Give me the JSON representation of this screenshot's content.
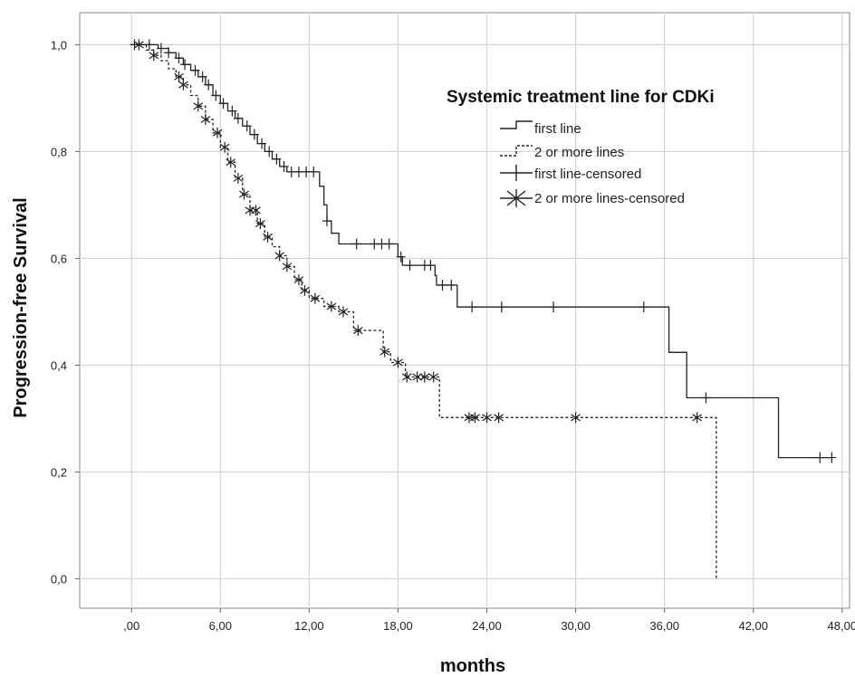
{
  "chart_data": {
    "type": "line",
    "subtype": "kaplan-meier step",
    "xlabel": "months",
    "ylabel": "Progression-free Survival",
    "xlim": [
      -3.5,
      48.5
    ],
    "ylim": [
      -0.055,
      1.06
    ],
    "x_ticks": [
      0,
      6,
      12,
      18,
      24,
      30,
      36,
      42,
      48
    ],
    "x_tick_labels": [
      ",00",
      "6,00",
      "12,00",
      "18,00",
      "24,00",
      "30,00",
      "36,00",
      "42,00",
      "48,00"
    ],
    "y_ticks": [
      0,
      0.2,
      0.4,
      0.6,
      0.8,
      1.0
    ],
    "y_tick_labels": [
      "0,0",
      "0,2",
      "0,4",
      "0,6",
      "0,8",
      "1,0"
    ],
    "grid": true,
    "legend": {
      "title": "Systemic treatment line for CDKi",
      "placement": "top-right",
      "entries": [
        "first line",
        "2 or more lines",
        "first line-censored",
        "2 or more lines-censored"
      ]
    },
    "series": [
      {
        "name": "first line",
        "style": "solid",
        "color": "#222222",
        "steps": [
          [
            0,
            1.0
          ],
          [
            1.8,
            0.993
          ],
          [
            2.5,
            0.985
          ],
          [
            3.0,
            0.975
          ],
          [
            3.5,
            0.963
          ],
          [
            4.0,
            0.952
          ],
          [
            4.5,
            0.94
          ],
          [
            5.0,
            0.925
          ],
          [
            5.5,
            0.905
          ],
          [
            6.0,
            0.89
          ],
          [
            6.5,
            0.876
          ],
          [
            7.0,
            0.862
          ],
          [
            7.5,
            0.848
          ],
          [
            8.0,
            0.832
          ],
          [
            8.5,
            0.815
          ],
          [
            9.0,
            0.8
          ],
          [
            9.5,
            0.786
          ],
          [
            10.0,
            0.772
          ],
          [
            10.5,
            0.762
          ],
          [
            12.7,
            0.735
          ],
          [
            13.0,
            0.7
          ],
          [
            13.2,
            0.67
          ],
          [
            13.5,
            0.647
          ],
          [
            14.0,
            0.627
          ],
          [
            18.0,
            0.603
          ],
          [
            18.3,
            0.587
          ],
          [
            20.5,
            0.568
          ],
          [
            20.6,
            0.55
          ],
          [
            22.0,
            0.509
          ],
          [
            36.3,
            0.424
          ],
          [
            37.5,
            0.339
          ],
          [
            43.7,
            0.227
          ],
          [
            47.2,
            0.227
          ]
        ],
        "censored": [
          [
            0.2,
            0.998
          ],
          [
            1.2,
            0.995
          ],
          [
            2.0,
            0.992
          ],
          [
            2.5,
            0.99
          ],
          [
            3.2,
            0.97
          ],
          [
            3.6,
            0.96
          ],
          [
            4.3,
            0.945
          ],
          [
            4.8,
            0.93
          ],
          [
            5.2,
            0.915
          ],
          [
            5.7,
            0.9
          ],
          [
            6.2,
            0.885
          ],
          [
            6.8,
            0.87
          ],
          [
            7.2,
            0.855
          ],
          [
            7.8,
            0.84
          ],
          [
            8.3,
            0.823
          ],
          [
            8.8,
            0.806
          ],
          [
            9.3,
            0.79
          ],
          [
            9.8,
            0.775
          ],
          [
            10.3,
            0.765
          ],
          [
            10.8,
            0.762
          ],
          [
            11.3,
            0.762
          ],
          [
            11.8,
            0.75
          ],
          [
            12.3,
            0.745
          ],
          [
            13.2,
            0.67
          ],
          [
            15.2,
            0.627
          ],
          [
            16.4,
            0.627
          ],
          [
            16.9,
            0.627
          ],
          [
            17.4,
            0.627
          ],
          [
            18.2,
            0.587
          ],
          [
            18.8,
            0.587
          ],
          [
            19.8,
            0.587
          ],
          [
            20.2,
            0.587
          ],
          [
            21.0,
            0.55
          ],
          [
            21.6,
            0.55
          ],
          [
            23.0,
            0.509
          ],
          [
            25.0,
            0.509
          ],
          [
            28.5,
            0.509
          ],
          [
            34.6,
            0.509
          ],
          [
            38.8,
            0.339
          ],
          [
            46.5,
            0.227
          ],
          [
            47.3,
            0.227
          ]
        ]
      },
      {
        "name": "2 or more lines",
        "style": "dashed",
        "color": "#222222",
        "steps": [
          [
            0,
            1.0
          ],
          [
            1.0,
            0.99
          ],
          [
            1.5,
            0.98
          ],
          [
            2.0,
            0.97
          ],
          [
            2.5,
            0.955
          ],
          [
            3.0,
            0.94
          ],
          [
            3.5,
            0.925
          ],
          [
            4.0,
            0.905
          ],
          [
            4.5,
            0.885
          ],
          [
            5.0,
            0.86
          ],
          [
            5.5,
            0.835
          ],
          [
            6.0,
            0.808
          ],
          [
            6.5,
            0.78
          ],
          [
            7.0,
            0.75
          ],
          [
            7.5,
            0.72
          ],
          [
            8.0,
            0.69
          ],
          [
            8.5,
            0.665
          ],
          [
            9.0,
            0.64
          ],
          [
            9.5,
            0.622
          ],
          [
            10.0,
            0.605
          ],
          [
            10.5,
            0.585
          ],
          [
            11.0,
            0.56
          ],
          [
            11.5,
            0.54
          ],
          [
            12.0,
            0.525
          ],
          [
            13.0,
            0.51
          ],
          [
            14.0,
            0.5
          ],
          [
            15.0,
            0.465
          ],
          [
            17.0,
            0.425
          ],
          [
            17.5,
            0.405
          ],
          [
            18.5,
            0.378
          ],
          [
            20.8,
            0.302
          ],
          [
            39.5,
            0.0
          ]
        ],
        "censored": [
          [
            0.5,
            0.998
          ],
          [
            1.5,
            0.985
          ],
          [
            3.2,
            0.935
          ],
          [
            3.5,
            0.928
          ],
          [
            4.5,
            0.888
          ],
          [
            5.0,
            0.862
          ],
          [
            5.8,
            0.815
          ],
          [
            6.3,
            0.795
          ],
          [
            6.7,
            0.77
          ],
          [
            7.2,
            0.745
          ],
          [
            7.6,
            0.72
          ],
          [
            8.0,
            0.692
          ],
          [
            8.4,
            0.675
          ],
          [
            8.7,
            0.66
          ],
          [
            9.2,
            0.64
          ],
          [
            10.0,
            0.615
          ],
          [
            10.5,
            0.612
          ],
          [
            11.3,
            0.56
          ],
          [
            11.7,
            0.55
          ],
          [
            12.4,
            0.53
          ],
          [
            13.5,
            0.51
          ],
          [
            14.3,
            0.5
          ],
          [
            15.3,
            0.465
          ],
          [
            17.1,
            0.425
          ],
          [
            18.0,
            0.405
          ],
          [
            18.6,
            0.378
          ],
          [
            19.3,
            0.378
          ],
          [
            19.8,
            0.378
          ],
          [
            20.4,
            0.378
          ],
          [
            22.8,
            0.302
          ],
          [
            23.2,
            0.302
          ],
          [
            24.0,
            0.302
          ],
          [
            24.8,
            0.302
          ],
          [
            30.0,
            0.302
          ],
          [
            38.2,
            0.302
          ]
        ]
      }
    ]
  }
}
